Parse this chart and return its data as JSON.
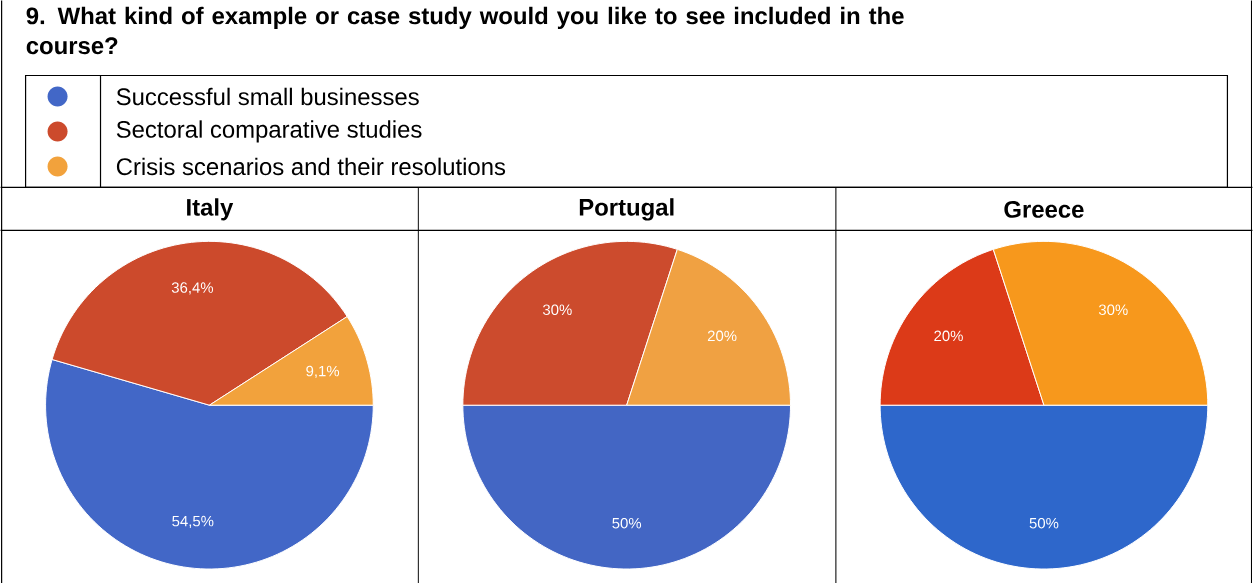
{
  "chart_data": [
    {
      "type": "other",
      "title": "9. What kind of example or case study would you like to see included in the course?"
    },
    {
      "type": "pie",
      "title": "Italy",
      "legend": "top",
      "categories": [
        "Successful small businesses",
        "Sectoral comparative studies",
        "Crisis scenarios and their resolutions"
      ],
      "values": [
        54.5,
        36.4,
        9.1
      ],
      "value_labels": [
        "54,5%",
        "36,4%",
        "9,1%"
      ],
      "colors": [
        "#4267c7",
        "#cc4a2c",
        "#f2a23c"
      ]
    },
    {
      "type": "pie",
      "title": "Portugal",
      "categories": [
        null,
        null,
        null
      ],
      "values": [
        50,
        30,
        20
      ],
      "value_labels": [
        "50%",
        "30%",
        "20%"
      ],
      "colors": [
        "#4366c4",
        "#cc4b2d",
        "#f0a142"
      ]
    },
    {
      "type": "pie",
      "title": "Greece",
      "categories": [
        null,
        null,
        null
      ],
      "values": [
        50,
        20,
        30
      ],
      "value_labels": [
        "50%",
        "20%",
        "30%"
      ],
      "colors": [
        "#2e67cb",
        "#dc3a18",
        "#f7981c"
      ]
    }
  ]
}
